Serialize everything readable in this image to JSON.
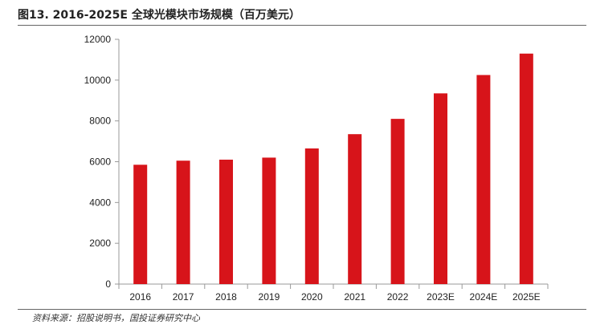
{
  "header": {
    "title": "图13. 2016-2025E 全球光模块市场规模（百万美元）"
  },
  "footer": {
    "source": "资料来源：招股说明书，国投证券研究中心"
  },
  "chart_data": {
    "type": "bar",
    "title": "图13. 2016-2025E 全球光模块市场规模（百万美元）",
    "xlabel": "",
    "ylabel": "",
    "categories": [
      "2016",
      "2017",
      "2018",
      "2019",
      "2020",
      "2021",
      "2022",
      "2023E",
      "2024E",
      "2025E"
    ],
    "values": [
      5850,
      6050,
      6100,
      6200,
      6650,
      7350,
      8100,
      9350,
      10250,
      11300
    ],
    "ylim": [
      0,
      12000
    ],
    "yticks": [
      0,
      2000,
      4000,
      6000,
      8000,
      10000,
      12000
    ],
    "grid": false,
    "legend": "none",
    "bar_color": "#d7141a",
    "axis_color": "#999999"
  }
}
